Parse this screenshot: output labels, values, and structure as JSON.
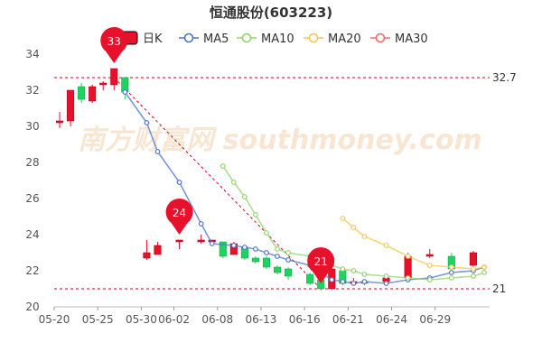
{
  "chart_data": {
    "type": "candlestick",
    "title": "恒通股份(603223)",
    "watermark": "南方财富网 southmoney.com",
    "colors": {
      "up": "#e8112c",
      "down": "#1ed460",
      "ma5": "#4f74c6",
      "ma10": "#94d36a",
      "ma20": "#f5c74a",
      "ma30": "#ef6a6a",
      "ref_line": "#d0021b",
      "marker": "#e8112c",
      "axis_text": "#555555",
      "grid": "#e8e8e8",
      "watermark": "#f3d2b0"
    },
    "legend": [
      {
        "key": "kline",
        "label": "日K",
        "symbol": "box"
      },
      {
        "key": "ma5",
        "label": "MA5",
        "symbol": "circle"
      },
      {
        "key": "ma10",
        "label": "MA10",
        "symbol": "circle"
      },
      {
        "key": "ma20",
        "label": "MA20",
        "symbol": "circle"
      },
      {
        "key": "ma30",
        "label": "MA30",
        "symbol": "circle"
      }
    ],
    "legend_position": "top",
    "ylim": [
      20,
      34
    ],
    "yticks": [
      20,
      22,
      24,
      26,
      28,
      30,
      32,
      34
    ],
    "grid": false,
    "xticks": [
      {
        "label": "05-20",
        "index": 0
      },
      {
        "label": "05-25",
        "index": 4
      },
      {
        "label": "05-30",
        "index": 8
      },
      {
        "label": "06-02",
        "index": 11
      },
      {
        "label": "06-08",
        "index": 15
      },
      {
        "label": "06-13",
        "index": 19
      },
      {
        "label": "06-16",
        "index": 23
      },
      {
        "label": "06-21",
        "index": 27
      },
      {
        "label": "06-24",
        "index": 31
      },
      {
        "label": "06-29",
        "index": 35
      }
    ],
    "candles": [
      {
        "o": 30.2,
        "c": 30.3,
        "h": 30.8,
        "l": 29.9
      },
      {
        "o": 30.3,
        "c": 32.0,
        "h": 32.0,
        "l": 30.0
      },
      {
        "o": 32.2,
        "c": 31.5,
        "h": 32.4,
        "l": 31.3
      },
      {
        "o": 31.4,
        "c": 32.2,
        "h": 32.3,
        "l": 31.3
      },
      {
        "o": 32.3,
        "c": 32.4,
        "h": 32.5,
        "l": 32.0
      },
      {
        "o": 32.3,
        "c": 33.2,
        "h": 33.2,
        "l": 32.0
      },
      {
        "o": 32.7,
        "c": 31.9,
        "h": 32.7,
        "l": 31.5
      },
      {
        "o": 22.7,
        "c": 23.0,
        "h": 23.7,
        "l": 22.6
      },
      {
        "o": 22.9,
        "c": 23.4,
        "h": 23.6,
        "l": 22.9
      },
      {
        "o": 23.6,
        "c": 23.7,
        "h": 23.7,
        "l": 23.2
      },
      {
        "o": 23.6,
        "c": 23.7,
        "h": 24.0,
        "l": 23.5
      },
      {
        "o": 23.6,
        "c": 23.7,
        "h": 23.7,
        "l": 23.5
      },
      {
        "o": 23.6,
        "c": 22.8,
        "h": 23.6,
        "l": 22.7
      },
      {
        "o": 22.9,
        "c": 23.5,
        "h": 23.6,
        "l": 22.9
      },
      {
        "o": 23.3,
        "c": 22.7,
        "h": 23.4,
        "l": 22.6
      },
      {
        "o": 22.7,
        "c": 22.5,
        "h": 22.8,
        "l": 22.4
      },
      {
        "o": 22.7,
        "c": 22.2,
        "h": 22.8,
        "l": 22.1
      },
      {
        "o": 22.2,
        "c": 21.9,
        "h": 22.3,
        "l": 21.8
      },
      {
        "o": 22.1,
        "c": 21.7,
        "h": 22.2,
        "l": 21.5
      },
      {
        "o": 21.8,
        "c": 21.3,
        "h": 21.9,
        "l": 21.2
      },
      {
        "o": 21.5,
        "c": 21.0,
        "h": 21.6,
        "l": 20.9
      },
      {
        "o": 21.0,
        "c": 22.1,
        "h": 22.4,
        "l": 21.0
      },
      {
        "o": 22.0,
        "c": 21.3,
        "h": 22.1,
        "l": 21.2
      },
      {
        "o": 21.3,
        "c": 21.4,
        "h": 21.6,
        "l": 21.2
      },
      {
        "o": 21.4,
        "c": 21.3,
        "h": 21.5,
        "l": 21.2
      },
      {
        "o": 21.4,
        "c": 21.6,
        "h": 21.7,
        "l": 21.4
      },
      {
        "o": 21.6,
        "c": 22.8,
        "h": 23.0,
        "l": 21.5
      },
      {
        "o": 22.8,
        "c": 22.9,
        "h": 23.2,
        "l": 22.7
      },
      {
        "o": 22.8,
        "c": 22.1,
        "h": 23.0,
        "l": 22.0
      },
      {
        "o": 22.3,
        "c": 23.0,
        "h": 23.1,
        "l": 22.2
      }
    ],
    "candle_slots": [
      0,
      1,
      2,
      3,
      4,
      5,
      6,
      7,
      8,
      9,
      10,
      11,
      12,
      13,
      14,
      15,
      16,
      17,
      18,
      19,
      20,
      21,
      22,
      23,
      24,
      25,
      26,
      27,
      28,
      29
    ],
    "slot_count": 40,
    "candle_index_to_slot": [
      0,
      1,
      2,
      3,
      4,
      5,
      6,
      8,
      9,
      11,
      13,
      14,
      15,
      16,
      17,
      18,
      19,
      20,
      21,
      23,
      24,
      25,
      26,
      27,
      28,
      30,
      32,
      34,
      36,
      38
    ],
    "series": [
      {
        "name": "MA5",
        "key": "ma5",
        "points": [
          {
            "i": 6,
            "y": 31.9
          },
          {
            "i": 8,
            "y": 30.2
          },
          {
            "i": 9,
            "y": 28.6
          },
          {
            "i": 11,
            "y": 26.9
          },
          {
            "i": 13,
            "y": 24.6
          },
          {
            "i": 14,
            "y": 23.5
          },
          {
            "i": 16,
            "y": 23.4
          },
          {
            "i": 17,
            "y": 23.3
          },
          {
            "i": 18,
            "y": 23.2
          },
          {
            "i": 19,
            "y": 23.0
          },
          {
            "i": 20,
            "y": 22.8
          },
          {
            "i": 21,
            "y": 22.6
          },
          {
            "i": 23,
            "y": 22.3
          },
          {
            "i": 24,
            "y": 21.9
          },
          {
            "i": 25,
            "y": 21.5
          },
          {
            "i": 26,
            "y": 21.4
          },
          {
            "i": 27,
            "y": 21.3
          },
          {
            "i": 28,
            "y": 21.4
          },
          {
            "i": 30,
            "y": 21.3
          },
          {
            "i": 32,
            "y": 21.5
          },
          {
            "i": 34,
            "y": 21.6
          },
          {
            "i": 36,
            "y": 21.9
          },
          {
            "i": 38,
            "y": 22.0
          },
          {
            "i": 39,
            "y": 22.2
          }
        ]
      },
      {
        "name": "MA10",
        "key": "ma10",
        "points": [
          {
            "i": 15,
            "y": 27.8
          },
          {
            "i": 16,
            "y": 26.9
          },
          {
            "i": 17,
            "y": 26.1
          },
          {
            "i": 18,
            "y": 25.1
          },
          {
            "i": 19,
            "y": 24.1
          },
          {
            "i": 20,
            "y": 23.2
          },
          {
            "i": 21,
            "y": 23.0
          },
          {
            "i": 23,
            "y": 22.8
          },
          {
            "i": 24,
            "y": 22.6
          },
          {
            "i": 25,
            "y": 22.3
          },
          {
            "i": 26,
            "y": 22.1
          },
          {
            "i": 27,
            "y": 22.0
          },
          {
            "i": 28,
            "y": 21.8
          },
          {
            "i": 30,
            "y": 21.7
          },
          {
            "i": 32,
            "y": 21.6
          },
          {
            "i": 34,
            "y": 21.5
          },
          {
            "i": 36,
            "y": 21.6
          },
          {
            "i": 38,
            "y": 21.7
          },
          {
            "i": 39,
            "y": 21.9
          }
        ]
      },
      {
        "name": "MA20",
        "key": "ma20",
        "points": [
          {
            "i": 26,
            "y": 24.9
          },
          {
            "i": 27,
            "y": 24.4
          },
          {
            "i": 28,
            "y": 23.9
          },
          {
            "i": 30,
            "y": 23.4
          },
          {
            "i": 32,
            "y": 22.8
          },
          {
            "i": 34,
            "y": 22.3
          },
          {
            "i": 36,
            "y": 22.2
          },
          {
            "i": 38,
            "y": 22.1
          },
          {
            "i": 39,
            "y": 22.2
          }
        ]
      },
      {
        "name": "MA30",
        "key": "ma30",
        "points": []
      }
    ],
    "ref_lines": [
      {
        "value": 32.7,
        "label": "32.7"
      },
      {
        "value": 21.0,
        "label": "21"
      }
    ],
    "markers": [
      {
        "label": "33",
        "slot": 5,
        "value": 33.2
      },
      {
        "label": "24",
        "slot": 11,
        "value": 23.7
      },
      {
        "label": "21",
        "slot": 24,
        "value": 21.0
      }
    ],
    "trend_line": {
      "from": {
        "slot": 5,
        "value": 32.7
      },
      "to": {
        "slot": 24,
        "value": 21.0
      }
    }
  }
}
